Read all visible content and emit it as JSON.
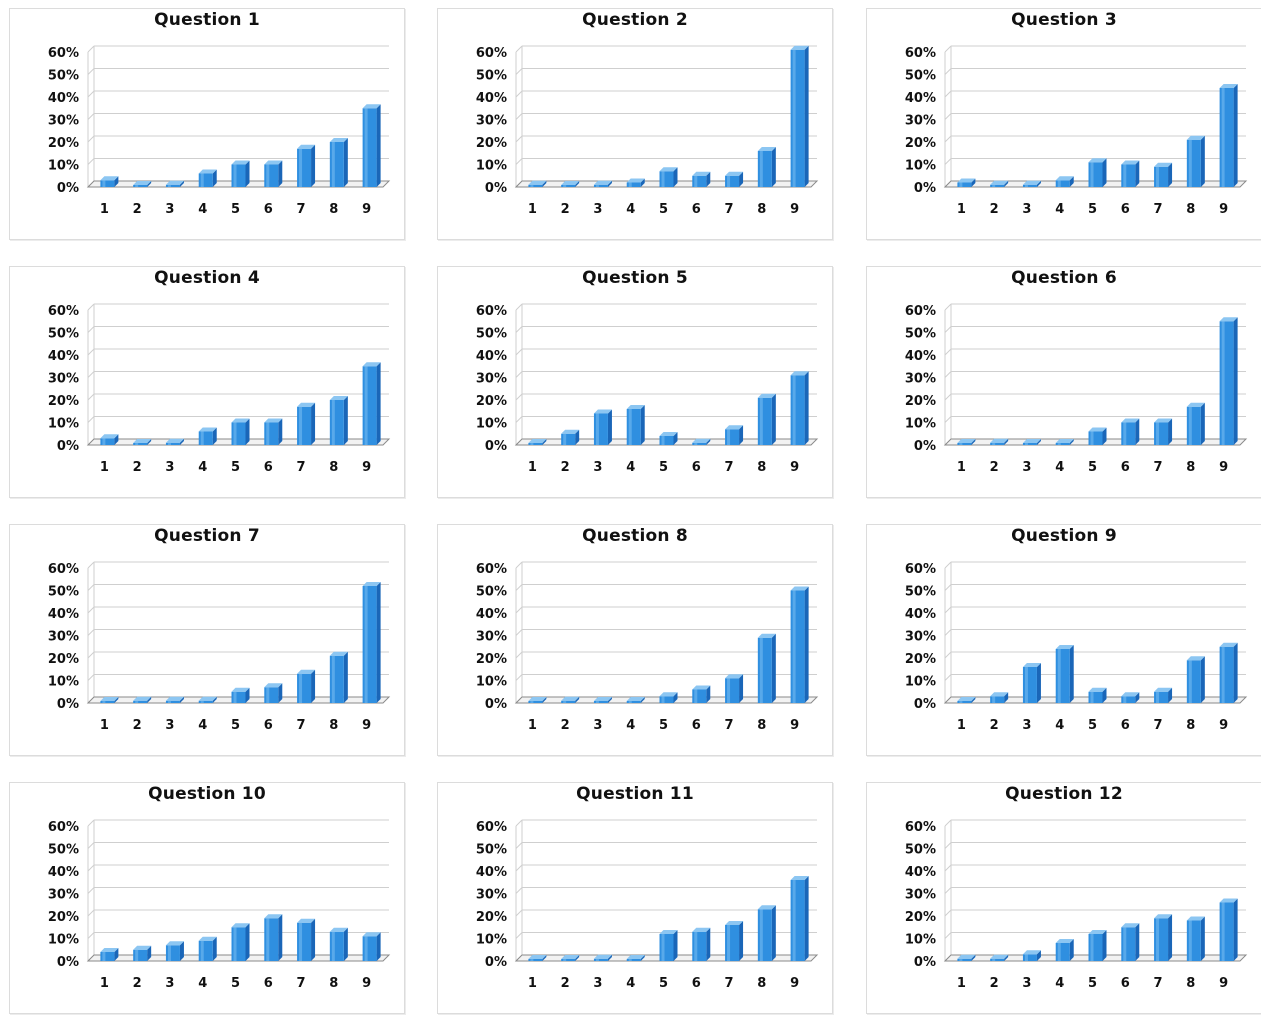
{
  "colors": {
    "bar_front": "#2f8fe0",
    "bar_side": "#1a66b8",
    "bar_top": "#8cc6f2",
    "grid": "#cfcfcf",
    "axis": "#8a8a8a",
    "text": "#111111"
  },
  "chart_data": [
    {
      "type": "bar",
      "title": "Question 1",
      "categories": [
        "1",
        "2",
        "3",
        "4",
        "5",
        "6",
        "7",
        "8",
        "9"
      ],
      "values": [
        3,
        0,
        1,
        6,
        10,
        10,
        17,
        20,
        35
      ],
      "yticks": [
        "0%",
        "10%",
        "20%",
        "30%",
        "40%",
        "50%",
        "60%"
      ],
      "ylim": [
        0,
        60
      ],
      "grid": true
    },
    {
      "type": "bar",
      "title": "Question 2",
      "categories": [
        "1",
        "2",
        "3",
        "4",
        "5",
        "6",
        "7",
        "8",
        "9"
      ],
      "values": [
        1,
        0,
        1,
        2,
        7,
        5,
        5,
        16,
        61
      ],
      "yticks": [
        "0%",
        "10%",
        "20%",
        "30%",
        "40%",
        "50%",
        "60%"
      ],
      "ylim": [
        0,
        60
      ],
      "grid": true
    },
    {
      "type": "bar",
      "title": "Question 3",
      "categories": [
        "1",
        "2",
        "3",
        "4",
        "5",
        "6",
        "7",
        "8",
        "9"
      ],
      "values": [
        2,
        1,
        1,
        3,
        11,
        10,
        9,
        21,
        44
      ],
      "yticks": [
        "0%",
        "10%",
        "20%",
        "30%",
        "40%",
        "50%",
        "60%"
      ],
      "ylim": [
        0,
        60
      ],
      "grid": true
    },
    {
      "type": "bar",
      "title": "Question 4",
      "categories": [
        "1",
        "2",
        "3",
        "4",
        "5",
        "6",
        "7",
        "8",
        "9"
      ],
      "values": [
        3,
        0,
        1,
        6,
        10,
        10,
        17,
        20,
        35
      ],
      "yticks": [
        "0%",
        "10%",
        "20%",
        "30%",
        "40%",
        "50%",
        "60%"
      ],
      "ylim": [
        0,
        60
      ],
      "grid": true
    },
    {
      "type": "bar",
      "title": "Question 5",
      "categories": [
        "1",
        "2",
        "3",
        "4",
        "5",
        "6",
        "7",
        "8",
        "9"
      ],
      "values": [
        0,
        5,
        14,
        16,
        4,
        1,
        7,
        21,
        31
      ],
      "yticks": [
        "0%",
        "10%",
        "20%",
        "30%",
        "40%",
        "50%",
        "60%"
      ],
      "ylim": [
        0,
        60
      ],
      "grid": true
    },
    {
      "type": "bar",
      "title": "Question 6",
      "categories": [
        "1",
        "2",
        "3",
        "4",
        "5",
        "6",
        "7",
        "8",
        "9"
      ],
      "values": [
        0,
        1,
        0,
        0,
        6,
        10,
        10,
        17,
        55
      ],
      "yticks": [
        "0%",
        "10%",
        "20%",
        "30%",
        "40%",
        "50%",
        "60%"
      ],
      "ylim": [
        0,
        60
      ],
      "grid": true
    },
    {
      "type": "bar",
      "title": "Question 7",
      "categories": [
        "1",
        "2",
        "3",
        "4",
        "5",
        "6",
        "7",
        "8",
        "9"
      ],
      "values": [
        0,
        1,
        1,
        1,
        5,
        7,
        13,
        21,
        52
      ],
      "yticks": [
        "0%",
        "10%",
        "20%",
        "30%",
        "40%",
        "50%",
        "60%"
      ],
      "ylim": [
        0,
        60
      ],
      "grid": true
    },
    {
      "type": "bar",
      "title": "Question 8",
      "categories": [
        "1",
        "2",
        "3",
        "4",
        "5",
        "6",
        "7",
        "8",
        "9"
      ],
      "values": [
        0,
        1,
        0,
        0,
        3,
        6,
        11,
        29,
        50
      ],
      "yticks": [
        "0%",
        "10%",
        "20%",
        "30%",
        "40%",
        "50%",
        "60%"
      ],
      "ylim": [
        0,
        60
      ],
      "grid": true
    },
    {
      "type": "bar",
      "title": "Question 9",
      "categories": [
        "1",
        "2",
        "3",
        "4",
        "5",
        "6",
        "7",
        "8",
        "9"
      ],
      "values": [
        0,
        3,
        16,
        24,
        5,
        3,
        5,
        19,
        25
      ],
      "yticks": [
        "0%",
        "10%",
        "20%",
        "30%",
        "40%",
        "50%",
        "60%"
      ],
      "ylim": [
        0,
        60
      ],
      "grid": true
    },
    {
      "type": "bar",
      "title": "Question 10",
      "categories": [
        "1",
        "2",
        "3",
        "4",
        "5",
        "6",
        "7",
        "8",
        "9"
      ],
      "values": [
        4,
        5,
        7,
        9,
        15,
        19,
        17,
        13,
        11
      ],
      "yticks": [
        "0%",
        "10%",
        "20%",
        "30%",
        "40%",
        "50%",
        "60%"
      ],
      "ylim": [
        0,
        60
      ],
      "grid": true
    },
    {
      "type": "bar",
      "title": "Question 11",
      "categories": [
        "1",
        "2",
        "3",
        "4",
        "5",
        "6",
        "7",
        "8",
        "9"
      ],
      "values": [
        0,
        0,
        1,
        0,
        12,
        13,
        16,
        23,
        36
      ],
      "yticks": [
        "0%",
        "10%",
        "20%",
        "30%",
        "40%",
        "50%",
        "60%"
      ],
      "ylim": [
        0,
        60
      ],
      "grid": true
    },
    {
      "type": "bar",
      "title": "Question 12",
      "categories": [
        "1",
        "2",
        "3",
        "4",
        "5",
        "6",
        "7",
        "8",
        "9"
      ],
      "values": [
        1,
        1,
        3,
        8,
        12,
        15,
        19,
        18,
        26
      ],
      "yticks": [
        "0%",
        "10%",
        "20%",
        "30%",
        "40%",
        "50%",
        "60%"
      ],
      "ylim": [
        0,
        60
      ],
      "grid": true
    }
  ]
}
